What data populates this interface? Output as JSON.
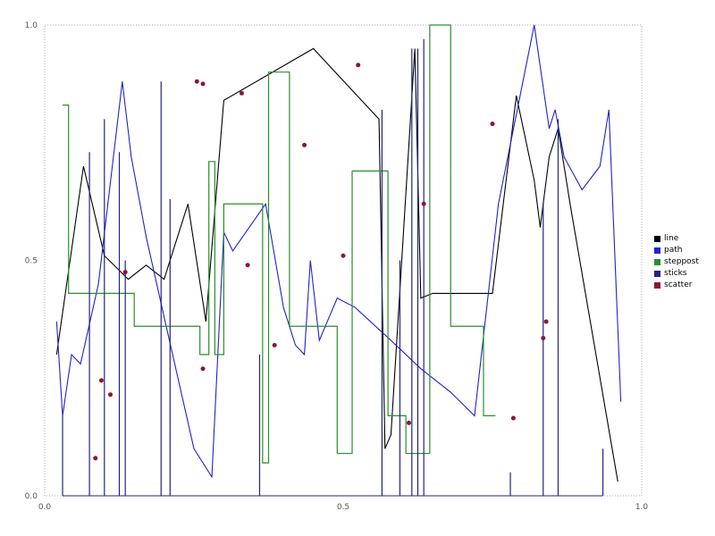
{
  "frame": {
    "border_color": "#aaaaaa",
    "tick_color": "#555555",
    "background": "#ffffff"
  },
  "chart_data": {
    "type": "line",
    "title": "",
    "xlabel": "",
    "ylabel": "",
    "xlim": [
      0,
      1
    ],
    "ylim": [
      0,
      1
    ],
    "grid": false,
    "x_ticks": [
      0.0,
      0.5,
      1.0
    ],
    "y_ticks": [
      0.0,
      0.5,
      1.0
    ],
    "x_tick_labels": [
      "0.0",
      "0.5",
      "1.0"
    ],
    "y_tick_labels": [
      "0.0",
      "0.5",
      "1.0"
    ],
    "legend": {
      "position": "right-outside",
      "items": [
        {
          "label": "line",
          "color": "#000000"
        },
        {
          "label": "path",
          "color": "#2222cc"
        },
        {
          "label": "steppost",
          "color": "#2a8f2a"
        },
        {
          "label": "sticks",
          "color": "#23237f"
        },
        {
          "label": "scatter",
          "color": "#8b1538"
        }
      ]
    },
    "series": [
      {
        "name": "line",
        "type": "line",
        "color": "#000000",
        "points": [
          [
            0.02,
            0.3
          ],
          [
            0.065,
            0.7
          ],
          [
            0.1,
            0.51
          ],
          [
            0.14,
            0.46
          ],
          [
            0.17,
            0.49
          ],
          [
            0.2,
            0.46
          ],
          [
            0.24,
            0.62
          ],
          [
            0.27,
            0.37
          ],
          [
            0.3,
            0.84
          ],
          [
            0.45,
            0.95
          ],
          [
            0.56,
            0.8
          ],
          [
            0.57,
            0.1
          ],
          [
            0.58,
            0.13
          ],
          [
            0.62,
            0.95
          ],
          [
            0.63,
            0.42
          ],
          [
            0.65,
            0.43
          ],
          [
            0.75,
            0.43
          ],
          [
            0.79,
            0.85
          ],
          [
            0.82,
            0.67
          ],
          [
            0.83,
            0.57
          ],
          [
            0.845,
            0.72
          ],
          [
            0.86,
            0.78
          ],
          [
            0.88,
            0.62
          ],
          [
            0.96,
            0.03
          ]
        ]
      },
      {
        "name": "path",
        "type": "line",
        "color": "#2222cc",
        "points": [
          [
            0.02,
            0.37
          ],
          [
            0.03,
            0.17
          ],
          [
            0.045,
            0.3
          ],
          [
            0.06,
            0.28
          ],
          [
            0.09,
            0.45
          ],
          [
            0.13,
            0.88
          ],
          [
            0.145,
            0.72
          ],
          [
            0.17,
            0.55
          ],
          [
            0.2,
            0.38
          ],
          [
            0.25,
            0.1
          ],
          [
            0.28,
            0.04
          ],
          [
            0.3,
            0.56
          ],
          [
            0.315,
            0.52
          ],
          [
            0.37,
            0.62
          ],
          [
            0.4,
            0.4
          ],
          [
            0.42,
            0.32
          ],
          [
            0.435,
            0.3
          ],
          [
            0.445,
            0.5
          ],
          [
            0.46,
            0.33
          ],
          [
            0.49,
            0.42
          ],
          [
            0.52,
            0.4
          ],
          [
            0.58,
            0.33
          ],
          [
            0.63,
            0.27
          ],
          [
            0.68,
            0.22
          ],
          [
            0.72,
            0.17
          ],
          [
            0.76,
            0.62
          ],
          [
            0.82,
            1.0
          ],
          [
            0.845,
            0.78
          ],
          [
            0.855,
            0.82
          ],
          [
            0.87,
            0.72
          ],
          [
            0.9,
            0.65
          ],
          [
            0.93,
            0.7
          ],
          [
            0.945,
            0.82
          ],
          [
            0.965,
            0.2
          ]
        ]
      },
      {
        "name": "steppost",
        "type": "step-post",
        "color": "#2a8f2a",
        "points": [
          [
            0.03,
            0.83
          ],
          [
            0.04,
            0.43
          ],
          [
            0.15,
            0.36
          ],
          [
            0.26,
            0.3
          ],
          [
            0.275,
            0.71
          ],
          [
            0.285,
            0.3
          ],
          [
            0.3,
            0.62
          ],
          [
            0.355,
            0.62
          ],
          [
            0.365,
            0.07
          ],
          [
            0.375,
            0.9
          ],
          [
            0.4,
            0.9
          ],
          [
            0.41,
            0.36
          ],
          [
            0.48,
            0.36
          ],
          [
            0.49,
            0.09
          ],
          [
            0.515,
            0.69
          ],
          [
            0.565,
            0.69
          ],
          [
            0.575,
            0.17
          ],
          [
            0.6,
            0.17
          ],
          [
            0.605,
            0.09
          ],
          [
            0.635,
            0.09
          ],
          [
            0.645,
            1.0
          ],
          [
            0.675,
            1.0
          ],
          [
            0.68,
            0.36
          ],
          [
            0.73,
            0.36
          ],
          [
            0.735,
            0.17
          ],
          [
            0.755,
            0.17
          ]
        ]
      },
      {
        "name": "sticks",
        "type": "sticks",
        "color": "#23237f",
        "baseline_y": 0,
        "baseline_x": [
          0.03,
          0.935
        ],
        "points": [
          [
            0.03,
            0.17
          ],
          [
            0.075,
            0.73
          ],
          [
            0.1,
            0.8
          ],
          [
            0.125,
            0.73
          ],
          [
            0.135,
            0.5
          ],
          [
            0.195,
            0.88
          ],
          [
            0.21,
            0.63
          ],
          [
            0.36,
            0.3
          ],
          [
            0.565,
            0.82
          ],
          [
            0.595,
            0.5
          ],
          [
            0.615,
            0.95
          ],
          [
            0.625,
            0.95
          ],
          [
            0.635,
            0.97
          ],
          [
            0.78,
            0.05
          ],
          [
            0.835,
            0.62
          ],
          [
            0.86,
            0.8
          ],
          [
            0.935,
            0.1
          ]
        ]
      },
      {
        "name": "scatter",
        "type": "scatter",
        "color": "#8b1538",
        "marker_radius": 2.5,
        "points": [
          [
            0.085,
            0.08
          ],
          [
            0.095,
            0.245
          ],
          [
            0.11,
            0.215
          ],
          [
            0.135,
            0.475
          ],
          [
            0.255,
            0.88
          ],
          [
            0.265,
            0.875
          ],
          [
            0.265,
            0.27
          ],
          [
            0.33,
            0.855
          ],
          [
            0.34,
            0.49
          ],
          [
            0.385,
            0.32
          ],
          [
            0.435,
            0.745
          ],
          [
            0.5,
            0.51
          ],
          [
            0.525,
            0.915
          ],
          [
            0.61,
            0.155
          ],
          [
            0.635,
            0.62
          ],
          [
            0.75,
            0.79
          ],
          [
            0.785,
            0.165
          ],
          [
            0.835,
            0.335
          ],
          [
            0.84,
            0.37
          ]
        ]
      }
    ]
  }
}
